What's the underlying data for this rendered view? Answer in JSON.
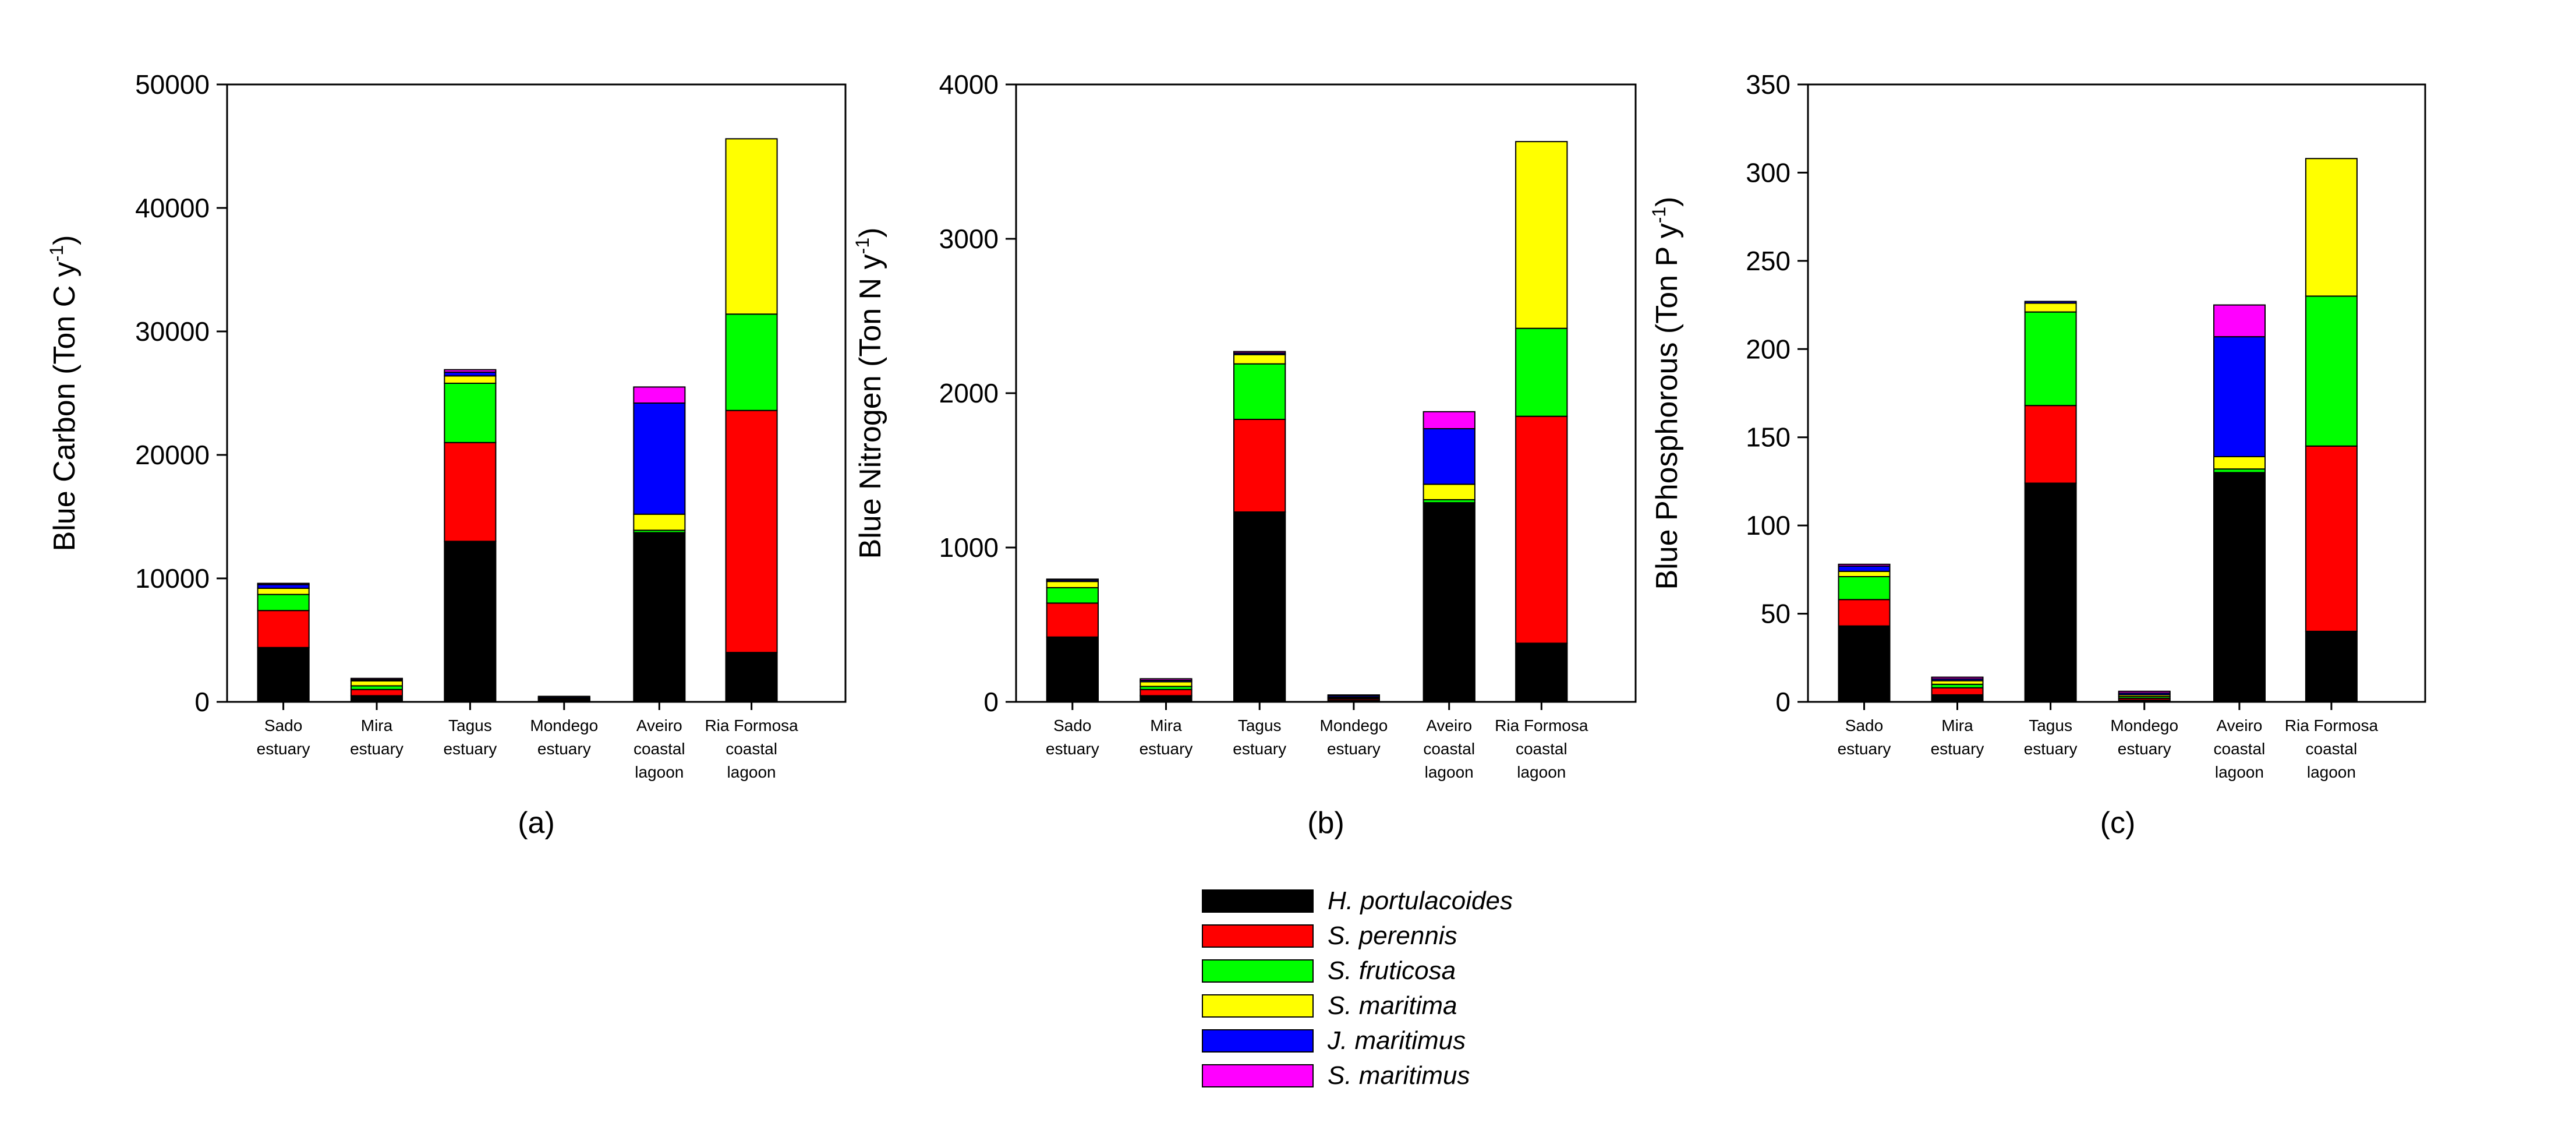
{
  "legend": {
    "series": [
      {
        "name": "H. portulacoides",
        "color": "#000000"
      },
      {
        "name": "S. perennis",
        "color": "#ff0000"
      },
      {
        "name": "S. fruticosa",
        "color": "#00ff00"
      },
      {
        "name": "S. maritima",
        "color": "#ffff00"
      },
      {
        "name": "J. maritimus",
        "color": "#0000ff"
      },
      {
        "name": "S. maritimus",
        "color": "#ff00ff"
      }
    ]
  },
  "chart_data": [
    {
      "type": "bar",
      "stacked": true,
      "panel_label": "(a)",
      "ylabel": "Blue Carbon (Ton C y",
      "ylabel_sup": "-1",
      "ylabel_end": ")",
      "ylim": [
        0,
        50000
      ],
      "yticks": [
        "0",
        "10000",
        "20000",
        "30000",
        "40000",
        "50000"
      ],
      "ytick_values": [
        0,
        10000,
        20000,
        30000,
        40000,
        50000
      ],
      "categories": [
        [
          "Sado",
          "estuary"
        ],
        [
          "Mira",
          "estuary"
        ],
        [
          "Tagus",
          "estuary"
        ],
        [
          "Mondego",
          "estuary"
        ],
        [
          "Aveiro",
          "coastal",
          "lagoon"
        ],
        [
          "Ria Formosa",
          "coastal",
          "lagoon"
        ]
      ],
      "series": [
        {
          "name": "H. portulacoides",
          "values": [
            4400,
            500,
            13000,
            100,
            13700,
            4000
          ]
        },
        {
          "name": "S. perennis",
          "values": [
            3000,
            500,
            8000,
            100,
            0,
            19600
          ]
        },
        {
          "name": "S. fruticosa",
          "values": [
            1300,
            300,
            4800,
            50,
            200,
            7800
          ]
        },
        {
          "name": "S. maritima",
          "values": [
            500,
            400,
            600,
            50,
            1300,
            14200
          ]
        },
        {
          "name": "J. maritimus",
          "values": [
            300,
            100,
            300,
            100,
            9000,
            0
          ]
        },
        {
          "name": "S. maritimus",
          "values": [
            100,
            100,
            200,
            50,
            1300,
            0
          ]
        }
      ]
    },
    {
      "type": "bar",
      "stacked": true,
      "panel_label": "(b)",
      "ylabel": "Blue Nitrogen (Ton N y",
      "ylabel_sup": "-1",
      "ylabel_end": ")",
      "ylim": [
        0,
        4000
      ],
      "yticks": [
        "0",
        "1000",
        "2000",
        "3000",
        "4000"
      ],
      "ytick_values": [
        0,
        1000,
        2000,
        3000,
        4000
      ],
      "categories": [
        [
          "Sado",
          "estuary"
        ],
        [
          "Mira",
          "estuary"
        ],
        [
          "Tagus",
          "estuary"
        ],
        [
          "Mondego",
          "estuary"
        ],
        [
          "Aveiro",
          "coastal",
          "lagoon"
        ],
        [
          "Ria Formosa",
          "coastal",
          "lagoon"
        ]
      ],
      "series": [
        {
          "name": "H. portulacoides",
          "values": [
            420,
            40,
            1230,
            10,
            1290,
            380
          ]
        },
        {
          "name": "S. perennis",
          "values": [
            220,
            40,
            600,
            10,
            0,
            1470
          ]
        },
        {
          "name": "S. fruticosa",
          "values": [
            100,
            20,
            360,
            5,
            20,
            570
          ]
        },
        {
          "name": "S. maritima",
          "values": [
            40,
            30,
            60,
            5,
            100,
            1210
          ]
        },
        {
          "name": "J. maritimus",
          "values": [
            10,
            10,
            10,
            10,
            360,
            0
          ]
        },
        {
          "name": "S. maritimus",
          "values": [
            5,
            10,
            10,
            5,
            110,
            0
          ]
        }
      ]
    },
    {
      "type": "bar",
      "stacked": true,
      "panel_label": "(c)",
      "ylabel": "Blue Phosphorous (Ton P y",
      "ylabel_sup": "-1",
      "ylabel_end": ")",
      "ylim": [
        0,
        350
      ],
      "yticks": [
        "0",
        "50",
        "100",
        "150",
        "200",
        "250",
        "300",
        "350"
      ],
      "ytick_values": [
        0,
        50,
        100,
        150,
        200,
        250,
        300,
        350
      ],
      "categories": [
        [
          "Sado",
          "estuary"
        ],
        [
          "Mira",
          "estuary"
        ],
        [
          "Tagus",
          "estuary"
        ],
        [
          "Mondego",
          "estuary"
        ],
        [
          "Aveiro",
          "coastal",
          "lagoon"
        ],
        [
          "Ria Formosa",
          "coastal",
          "lagoon"
        ]
      ],
      "series": [
        {
          "name": "H. portulacoides",
          "values": [
            43,
            4,
            124,
            1,
            130,
            40
          ]
        },
        {
          "name": "S. perennis",
          "values": [
            15,
            4,
            44,
            1,
            0,
            105
          ]
        },
        {
          "name": "S. fruticosa",
          "values": [
            13,
            2,
            53,
            1,
            2,
            85
          ]
        },
        {
          "name": "S. maritima",
          "values": [
            3,
            2,
            5,
            1,
            7,
            78
          ]
        },
        {
          "name": "J. maritimus",
          "values": [
            3,
            1,
            1,
            1,
            68,
            0
          ]
        },
        {
          "name": "S. maritimus",
          "values": [
            1,
            1,
            0,
            1,
            18,
            0
          ]
        }
      ]
    }
  ]
}
